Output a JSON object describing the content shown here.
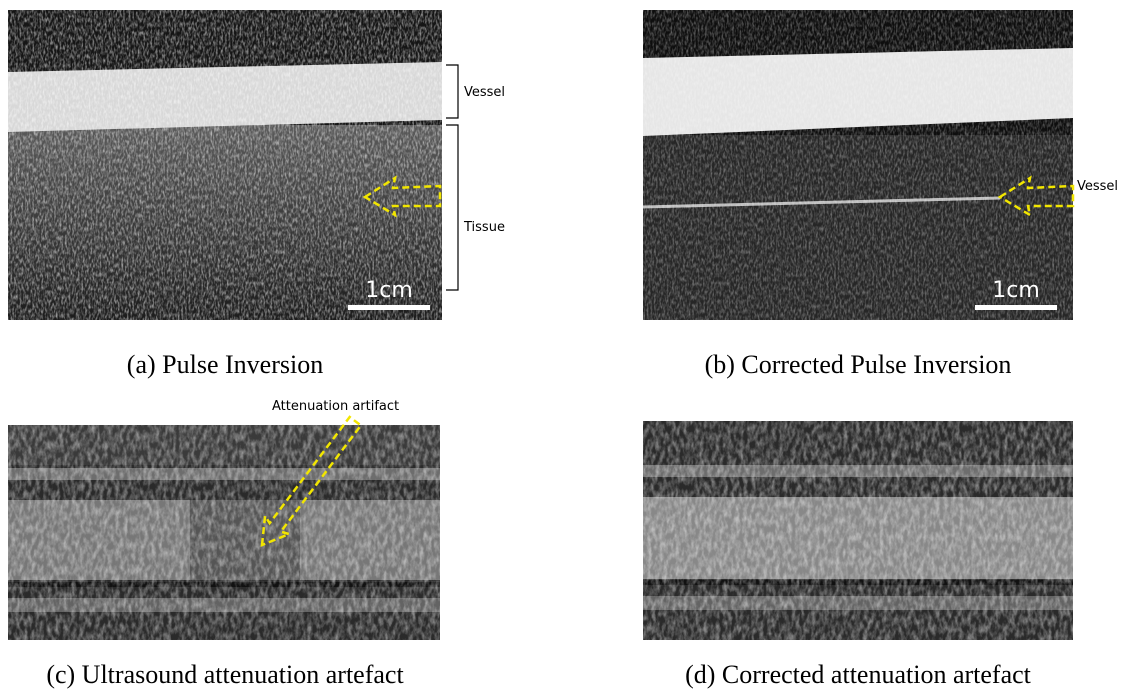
{
  "panels": [
    {
      "caption": "(a) Pulse Inversion",
      "annotations": [
        "Vessel",
        "Tissue"
      ],
      "scale_bar": "1cm"
    },
    {
      "caption": "(b) Corrected Pulse Inversion",
      "annotations": [
        "Vessel"
      ],
      "scale_bar": "1cm"
    },
    {
      "caption": "(c) Ultrasound attenuation artefact",
      "annotations": [
        "Attenuation artifact"
      ]
    },
    {
      "caption": "(d) Corrected attenuation artefact"
    }
  ]
}
